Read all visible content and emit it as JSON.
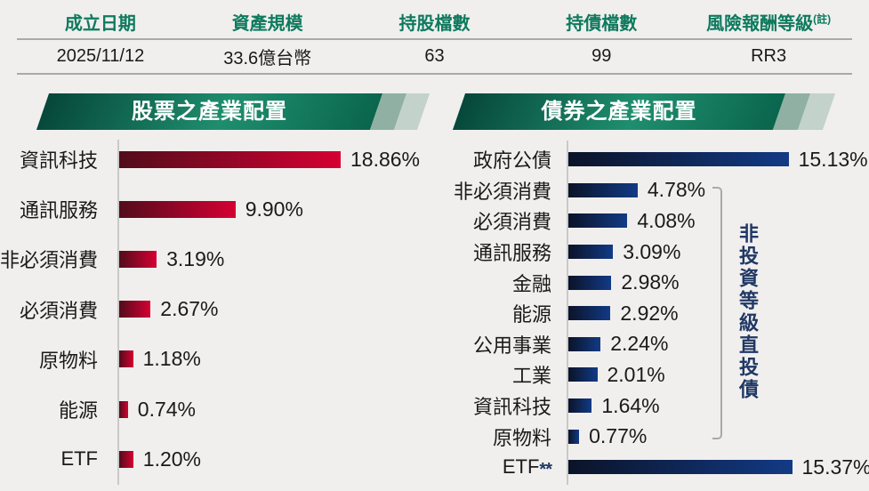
{
  "colors": {
    "background": "#f0efee",
    "table_header_green": "#0e7a5e",
    "banner_gradient": [
      "#06473a",
      "#1f8e6e",
      "#0a654d"
    ],
    "banner_stripe_1": "#8fb0a3",
    "banner_stripe_2": "#c3d2cb",
    "stock_bar_gradient": [
      "#520c1b",
      "#d50032"
    ],
    "bond_bar_gradient": [
      "#0b1328",
      "#123a85"
    ],
    "bracket_text_navy": "#203864",
    "axis_gray": "#c9c9c9",
    "text_black": "#1a1a1a"
  },
  "fund_table": {
    "columns": [
      {
        "header": "成立日期",
        "value": "2025/11/12"
      },
      {
        "header": "資產規模",
        "value": "33.6億台幣"
      },
      {
        "header": "持股檔數",
        "value": "63"
      },
      {
        "header": "持債檔數",
        "value": "99"
      },
      {
        "header": "風險報酬等級",
        "header_note": "(註)",
        "value": "RR3"
      }
    ]
  },
  "chart_data": [
    {
      "type": "bar",
      "orientation": "horizontal",
      "title": "股票之產業配置",
      "categories": [
        "資訊科技",
        "通訊服務",
        "非必須消費",
        "必須消費",
        "原物料",
        "能源",
        "ETF"
      ],
      "values": [
        18.86,
        9.9,
        3.19,
        2.67,
        1.18,
        0.74,
        1.2
      ],
      "value_labels": [
        "18.86%",
        "9.90%",
        "3.19%",
        "2.67%",
        "1.18%",
        "0.74%",
        "1.20%"
      ],
      "bar_gradient": [
        "#520c1b",
        "#d50032"
      ],
      "xlim": [
        0,
        20
      ],
      "grid": false,
      "legend": false
    },
    {
      "type": "bar",
      "orientation": "horizontal",
      "title": "債券之產業配置",
      "categories": [
        "政府公債",
        "非必須消費",
        "必須消費",
        "通訊服務",
        "金融",
        "能源",
        "公用事業",
        "工業",
        "資訊科技",
        "原物料",
        "ETF"
      ],
      "category_suffixes": {
        "10": "**"
      },
      "values": [
        15.13,
        4.78,
        4.08,
        3.09,
        2.98,
        2.92,
        2.24,
        2.01,
        1.64,
        0.77,
        15.37
      ],
      "value_labels": [
        "15.13%",
        "4.78%",
        "4.08%",
        "3.09%",
        "2.98%",
        "2.92%",
        "2.24%",
        "2.01%",
        "1.64%",
        "0.77%",
        "15.37%"
      ],
      "bar_gradient": [
        "#0b1328",
        "#123a85"
      ],
      "xlim": [
        0,
        16
      ],
      "grid": false,
      "legend": false,
      "bracket": {
        "label": "非投資等級直投債",
        "from_category": "非必須消費",
        "to_category": "原物料"
      }
    }
  ]
}
